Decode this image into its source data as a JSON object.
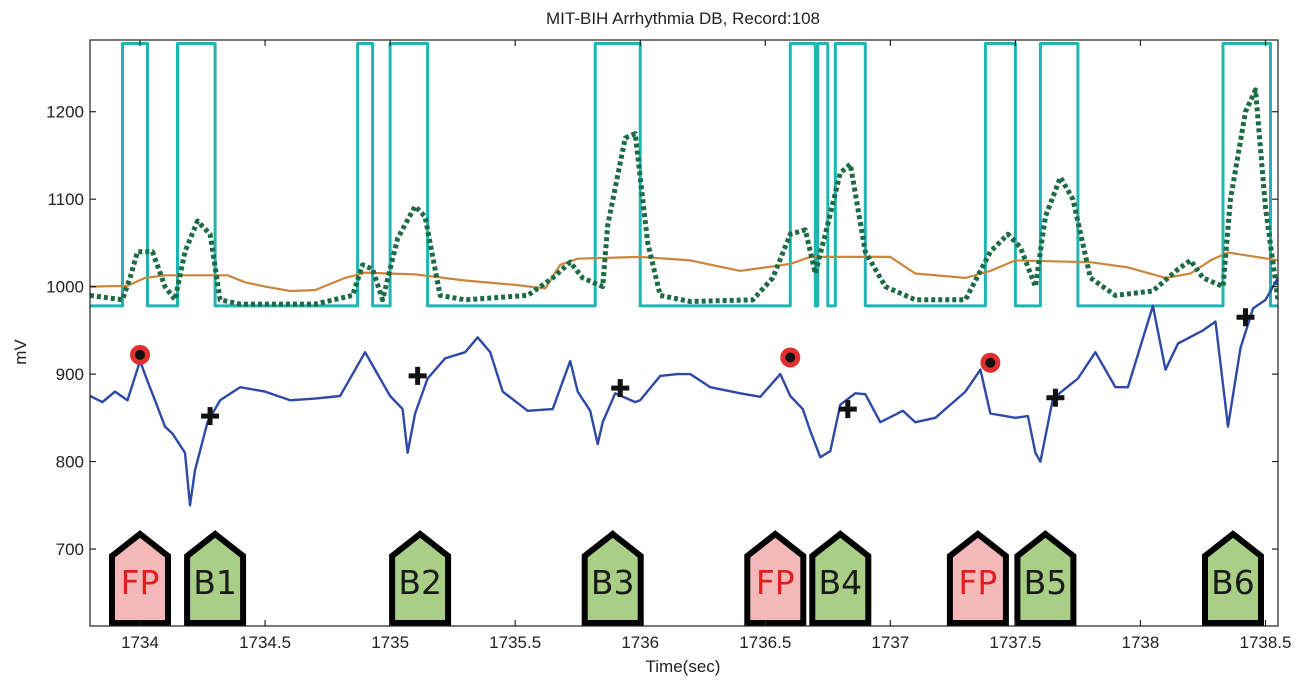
{
  "chart_data": {
    "type": "line",
    "title": "MIT-BIH Arrhythmia DB, Record:108",
    "xlabel": "Time(sec)",
    "ylabel": "mV",
    "xlim": [
      1733.8,
      1738.55
    ],
    "ylim": [
      612,
      1282
    ],
    "x_ticks": [
      1734,
      1734.5,
      1735,
      1735.5,
      1736,
      1736.5,
      1737,
      1737.5,
      1738,
      1738.5
    ],
    "x_tick_labels": [
      "1734",
      "1734.5",
      "1735",
      "1735.5",
      "1736",
      "1736.5",
      "1737",
      "1737.5",
      "1738",
      "1738.5"
    ],
    "y_ticks": [
      700,
      800,
      900,
      1000,
      1100,
      1200
    ],
    "y_tick_labels": [
      "700",
      "800",
      "900",
      "1000",
      "1100",
      "1200"
    ],
    "grid": false,
    "colors": {
      "ecg": "#2e49a6",
      "feature": "#1d6b44",
      "threshold": "#c8873c",
      "window": "#20b5b5",
      "fp_marker": "#e03030",
      "fp_box": "#f5b8b8",
      "beat_box": "#a9cf86",
      "fp_text": "#e02020",
      "beat_text": "#1a1a1a"
    },
    "series": [
      {
        "style": "solid-blue",
        "points": [
          [
            1733.8,
            875
          ],
          [
            1733.85,
            868
          ],
          [
            1733.9,
            880
          ],
          [
            1733.95,
            870
          ],
          [
            1734.0,
            915
          ],
          [
            1734.03,
            892
          ],
          [
            1734.06,
            870
          ],
          [
            1734.1,
            840
          ],
          [
            1734.13,
            832
          ],
          [
            1734.18,
            810
          ],
          [
            1734.2,
            750
          ],
          [
            1734.22,
            790
          ],
          [
            1734.27,
            845
          ],
          [
            1734.32,
            870
          ],
          [
            1734.4,
            885
          ],
          [
            1734.5,
            880
          ],
          [
            1734.6,
            870
          ],
          [
            1734.7,
            872
          ],
          [
            1734.8,
            875
          ],
          [
            1734.9,
            925
          ],
          [
            1734.95,
            900
          ],
          [
            1735.0,
            875
          ],
          [
            1735.05,
            860
          ],
          [
            1735.07,
            810
          ],
          [
            1735.1,
            855
          ],
          [
            1735.15,
            895
          ],
          [
            1735.22,
            918
          ],
          [
            1735.3,
            925
          ],
          [
            1735.35,
            942
          ],
          [
            1735.4,
            925
          ],
          [
            1735.45,
            880
          ],
          [
            1735.55,
            858
          ],
          [
            1735.65,
            860
          ],
          [
            1735.72,
            915
          ],
          [
            1735.75,
            880
          ],
          [
            1735.8,
            858
          ],
          [
            1735.83,
            820
          ],
          [
            1735.85,
            845
          ],
          [
            1735.9,
            878
          ],
          [
            1735.98,
            868
          ],
          [
            1736.0,
            870
          ],
          [
            1736.08,
            898
          ],
          [
            1736.15,
            900
          ],
          [
            1736.2,
            900
          ],
          [
            1736.28,
            885
          ],
          [
            1736.4,
            878
          ],
          [
            1736.48,
            874
          ],
          [
            1736.56,
            900
          ],
          [
            1736.6,
            875
          ],
          [
            1736.65,
            860
          ],
          [
            1736.68,
            835
          ],
          [
            1736.72,
            805
          ],
          [
            1736.76,
            812
          ],
          [
            1736.8,
            865
          ],
          [
            1736.86,
            878
          ],
          [
            1736.9,
            877
          ],
          [
            1736.96,
            845
          ],
          [
            1737.05,
            858
          ],
          [
            1737.1,
            845
          ],
          [
            1737.18,
            850
          ],
          [
            1737.3,
            880
          ],
          [
            1737.36,
            905
          ],
          [
            1737.4,
            855
          ],
          [
            1737.5,
            850
          ],
          [
            1737.55,
            852
          ],
          [
            1737.58,
            810
          ],
          [
            1737.6,
            800
          ],
          [
            1737.65,
            872
          ],
          [
            1737.75,
            895
          ],
          [
            1737.82,
            925
          ],
          [
            1737.9,
            885
          ],
          [
            1737.95,
            885
          ],
          [
            1738.05,
            978
          ],
          [
            1738.1,
            905
          ],
          [
            1738.15,
            935
          ],
          [
            1738.25,
            950
          ],
          [
            1738.3,
            960
          ],
          [
            1738.35,
            840
          ],
          [
            1738.4,
            930
          ],
          [
            1738.45,
            975
          ],
          [
            1738.5,
            985
          ],
          [
            1738.55,
            1010
          ]
        ]
      },
      {
        "style": "dotted-green",
        "points": [
          [
            1733.8,
            990
          ],
          [
            1733.93,
            985
          ],
          [
            1733.96,
            1010
          ],
          [
            1733.99,
            1040
          ],
          [
            1734.05,
            1040
          ],
          [
            1734.1,
            1000
          ],
          [
            1734.14,
            985
          ],
          [
            1734.18,
            1040
          ],
          [
            1734.23,
            1075
          ],
          [
            1734.28,
            1060
          ],
          [
            1734.32,
            985
          ],
          [
            1734.4,
            980
          ],
          [
            1734.7,
            980
          ],
          [
            1734.85,
            990
          ],
          [
            1734.89,
            1025
          ],
          [
            1734.93,
            1020
          ],
          [
            1734.97,
            985
          ],
          [
            1735.03,
            1055
          ],
          [
            1735.1,
            1092
          ],
          [
            1735.14,
            1080
          ],
          [
            1735.2,
            990
          ],
          [
            1735.3,
            985
          ],
          [
            1735.55,
            990
          ],
          [
            1735.65,
            1010
          ],
          [
            1735.72,
            1028
          ],
          [
            1735.77,
            1010
          ],
          [
            1735.85,
            1000
          ],
          [
            1735.87,
            1070
          ],
          [
            1735.94,
            1170
          ],
          [
            1735.98,
            1175
          ],
          [
            1736.03,
            1050
          ],
          [
            1736.08,
            990
          ],
          [
            1736.2,
            983
          ],
          [
            1736.45,
            985
          ],
          [
            1736.53,
            1010
          ],
          [
            1736.6,
            1060
          ],
          [
            1736.66,
            1065
          ],
          [
            1736.7,
            1015
          ],
          [
            1736.74,
            1060
          ],
          [
            1736.8,
            1130
          ],
          [
            1736.84,
            1140
          ],
          [
            1736.9,
            1040
          ],
          [
            1736.98,
            1000
          ],
          [
            1737.1,
            985
          ],
          [
            1737.3,
            985
          ],
          [
            1737.4,
            1040
          ],
          [
            1737.47,
            1060
          ],
          [
            1737.52,
            1045
          ],
          [
            1737.58,
            1000
          ],
          [
            1737.62,
            1080
          ],
          [
            1737.68,
            1125
          ],
          [
            1737.73,
            1100
          ],
          [
            1737.8,
            1010
          ],
          [
            1737.9,
            990
          ],
          [
            1738.05,
            995
          ],
          [
            1738.15,
            1020
          ],
          [
            1738.2,
            1030
          ],
          [
            1738.25,
            1010
          ],
          [
            1738.33,
            1000
          ],
          [
            1738.36,
            1100
          ],
          [
            1738.42,
            1200
          ],
          [
            1738.46,
            1225
          ],
          [
            1738.5,
            1090
          ],
          [
            1738.55,
            985
          ]
        ]
      },
      {
        "style": "solid-orange",
        "points": [
          [
            1733.8,
            1000
          ],
          [
            1733.95,
            1001
          ],
          [
            1734.02,
            1010
          ],
          [
            1734.1,
            1013
          ],
          [
            1734.35,
            1013
          ],
          [
            1734.42,
            1005
          ],
          [
            1734.5,
            1000
          ],
          [
            1734.6,
            995
          ],
          [
            1734.7,
            996
          ],
          [
            1734.82,
            1010
          ],
          [
            1734.9,
            1016
          ],
          [
            1735.1,
            1014
          ],
          [
            1735.3,
            1007
          ],
          [
            1735.5,
            1002
          ],
          [
            1735.62,
            998
          ],
          [
            1735.68,
            1025
          ],
          [
            1735.75,
            1032
          ],
          [
            1736.0,
            1034
          ],
          [
            1736.2,
            1030
          ],
          [
            1736.4,
            1018
          ],
          [
            1736.6,
            1026
          ],
          [
            1736.68,
            1034
          ],
          [
            1737.0,
            1034
          ],
          [
            1737.1,
            1015
          ],
          [
            1737.3,
            1010
          ],
          [
            1737.4,
            1018
          ],
          [
            1737.5,
            1030
          ],
          [
            1737.8,
            1028
          ],
          [
            1737.95,
            1022
          ],
          [
            1738.1,
            1010
          ],
          [
            1738.2,
            1015
          ],
          [
            1738.28,
            1030
          ],
          [
            1738.35,
            1039
          ],
          [
            1738.55,
            1030
          ]
        ]
      },
      {
        "style": "solid-teal",
        "points": [
          [
            1733.8,
            978
          ],
          [
            1733.93,
            978
          ],
          [
            1733.93,
            1278
          ],
          [
            1734.03,
            1278
          ],
          [
            1734.03,
            978
          ],
          [
            1734.15,
            978
          ],
          [
            1734.15,
            1278
          ],
          [
            1734.3,
            1278
          ],
          [
            1734.3,
            978
          ],
          [
            1734.87,
            978
          ],
          [
            1734.87,
            1278
          ],
          [
            1734.93,
            1278
          ],
          [
            1734.93,
            978
          ],
          [
            1735.0,
            978
          ],
          [
            1735.0,
            1278
          ],
          [
            1735.15,
            1278
          ],
          [
            1735.15,
            978
          ],
          [
            1735.82,
            978
          ],
          [
            1735.82,
            1278
          ],
          [
            1736.0,
            1278
          ],
          [
            1736.0,
            978
          ],
          [
            1736.6,
            978
          ],
          [
            1736.6,
            1278
          ],
          [
            1736.7,
            1278
          ],
          [
            1736.7,
            978
          ],
          [
            1736.71,
            978
          ],
          [
            1736.71,
            1278
          ],
          [
            1736.75,
            1278
          ],
          [
            1736.75,
            978
          ],
          [
            1736.78,
            978
          ],
          [
            1736.78,
            1278
          ],
          [
            1736.9,
            1278
          ],
          [
            1736.9,
            978
          ],
          [
            1737.38,
            978
          ],
          [
            1737.38,
            1278
          ],
          [
            1737.5,
            1278
          ],
          [
            1737.5,
            978
          ],
          [
            1737.6,
            978
          ],
          [
            1737.6,
            1278
          ],
          [
            1737.75,
            1278
          ],
          [
            1737.75,
            978
          ],
          [
            1738.33,
            978
          ],
          [
            1738.33,
            1278
          ],
          [
            1738.52,
            1278
          ],
          [
            1738.52,
            978
          ],
          [
            1738.6,
            978
          ]
        ]
      }
    ],
    "fp_markers": [
      [
        1734.0,
        922
      ],
      [
        1736.6,
        919
      ],
      [
        1737.4,
        913
      ]
    ],
    "cross_markers": [
      [
        1734.28,
        852
      ],
      [
        1735.11,
        898
      ],
      [
        1735.92,
        884
      ],
      [
        1736.83,
        860
      ],
      [
        1737.66,
        873
      ],
      [
        1738.42,
        965
      ]
    ],
    "beat_annotations": [
      {
        "label": "FP",
        "kind": "fp",
        "x": 1734.0
      },
      {
        "label": "B1",
        "kind": "beat",
        "x": 1734.3
      },
      {
        "label": "B2",
        "kind": "beat",
        "x": 1735.12
      },
      {
        "label": "B3",
        "kind": "beat",
        "x": 1735.89
      },
      {
        "label": "FP",
        "kind": "fp",
        "x": 1736.54
      },
      {
        "label": "B4",
        "kind": "beat",
        "x": 1736.8
      },
      {
        "label": "FP",
        "kind": "fp",
        "x": 1737.35
      },
      {
        "label": "B5",
        "kind": "beat",
        "x": 1737.62
      },
      {
        "label": "B6",
        "kind": "beat",
        "x": 1738.37
      }
    ]
  }
}
